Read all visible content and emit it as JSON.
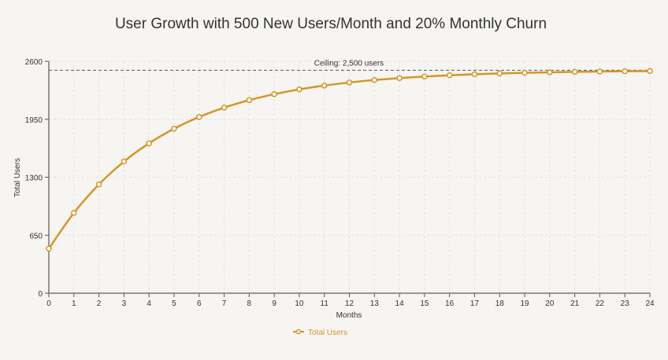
{
  "chart_data": {
    "type": "line",
    "title": "User Growth with 500 New Users/Month and 20% Monthly Churn",
    "xlabel": "Months",
    "ylabel": "Total Users",
    "xlim": [
      0,
      24
    ],
    "ylim": [
      0,
      2600
    ],
    "yticks": [
      0,
      650,
      1300,
      1950,
      2600
    ],
    "x": [
      0,
      1,
      2,
      3,
      4,
      5,
      6,
      7,
      8,
      9,
      10,
      11,
      12,
      13,
      14,
      15,
      16,
      17,
      18,
      19,
      20,
      21,
      22,
      23,
      24
    ],
    "series": [
      {
        "name": "Total Users",
        "color": "#d4952a",
        "values": [
          500,
          900,
          1220,
          1476,
          1680.8,
          1844.6,
          1975.7,
          2080.6,
          2164.5,
          2231.6,
          2285.3,
          2328.2,
          2362.6,
          2390.1,
          2412.1,
          2429.6,
          2443.7,
          2455.0,
          2464.0,
          2471.2,
          2477.0,
          2481.6,
          2485.2,
          2488.2,
          2490.6
        ]
      }
    ],
    "reference_line": {
      "value": 2500,
      "label": "Ceiling: 2,500 users"
    },
    "grid": true,
    "legend": "bottom-center"
  }
}
